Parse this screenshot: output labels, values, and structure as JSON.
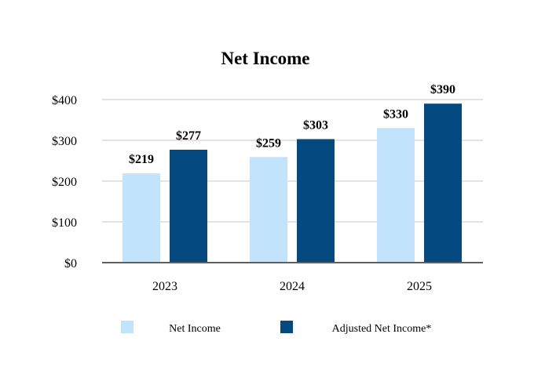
{
  "chart_data": {
    "type": "bar",
    "title": "Net Income",
    "xlabel": "",
    "ylabel": "",
    "categories": [
      "2023",
      "2024",
      "2025"
    ],
    "series": [
      {
        "name": "Net Income",
        "color": "#c1e3fb",
        "values": [
          219,
          259,
          330
        ],
        "labels": [
          "$219",
          "$259",
          "$330"
        ]
      },
      {
        "name": "Adjusted Net Income*",
        "color": "#044a80",
        "values": [
          277,
          303,
          390
        ],
        "labels": [
          "$277",
          "$303",
          "$390"
        ]
      }
    ],
    "ylim": [
      0,
      400
    ],
    "yticks": [
      0,
      100,
      200,
      300,
      400
    ],
    "ytick_labels": [
      "$0",
      "$100",
      "$200",
      "$300",
      "$400"
    ],
    "grid": true,
    "legend_position": "bottom"
  }
}
